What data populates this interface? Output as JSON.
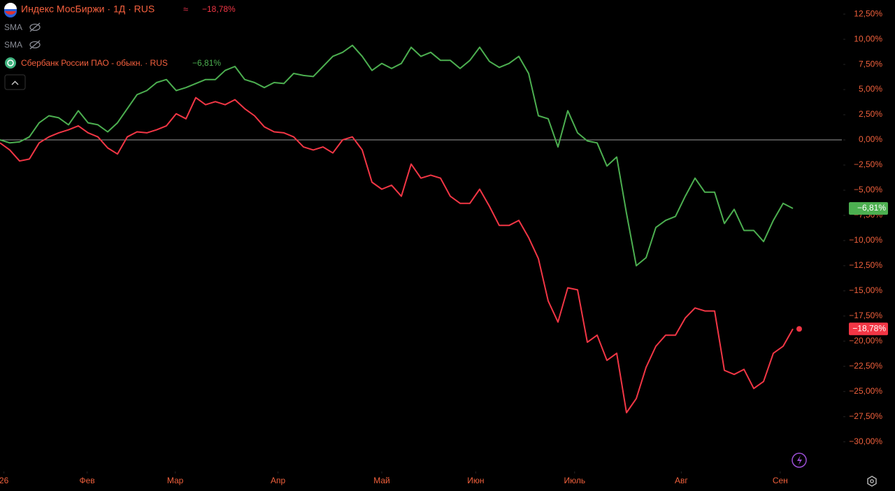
{
  "chart_data": {
    "type": "line",
    "series": [
      {
        "name": "Индекс МосБиржи · 1Д · RUS",
        "color": "#f23645",
        "change_label": "−18,78%",
        "values": [
          -0.3,
          -1.0,
          -2.1,
          -1.9,
          -0.3,
          0.3,
          0.7,
          1.0,
          1.4,
          0.7,
          0.3,
          -0.8,
          -1.4,
          0.3,
          0.8,
          0.7,
          1.0,
          1.4,
          2.6,
          2.1,
          4.2,
          3.5,
          3.8,
          3.5,
          4.0,
          3.1,
          2.4,
          1.3,
          0.8,
          0.7,
          0.3,
          -0.7,
          -1.0,
          -0.7,
          -1.3,
          0.0,
          0.3,
          -1.0,
          -4.2,
          -4.9,
          -4.5,
          -5.6,
          -2.4,
          -3.8,
          -3.5,
          -3.8,
          -5.6,
          -6.3,
          -6.3,
          -4.9,
          -6.6,
          -8.5,
          -8.5,
          -8.0,
          -9.7,
          -11.8,
          -16.0,
          -18.1,
          -14.7,
          -14.9,
          -20.1,
          -19.4,
          -21.9,
          -21.2,
          -27.1,
          -25.7,
          -22.6,
          -20.5,
          -19.4,
          -19.4,
          -17.7,
          -16.7,
          -17.0,
          -17.0,
          -22.9,
          -23.3,
          -22.8,
          -24.7,
          -24.0,
          -21.2,
          -20.5,
          -18.78
        ]
      },
      {
        "name": "Сбербанк России ПАО - обыкн. · RUS",
        "color": "#4caf50",
        "change_label": "−6,81%",
        "values": [
          0.0,
          -0.3,
          -0.2,
          0.3,
          1.7,
          2.4,
          2.2,
          1.5,
          2.9,
          1.7,
          1.5,
          0.8,
          1.7,
          3.1,
          4.5,
          4.9,
          5.7,
          6.0,
          4.9,
          5.2,
          5.6,
          6.0,
          6.0,
          6.9,
          7.3,
          6.0,
          5.7,
          5.2,
          5.7,
          5.6,
          6.6,
          6.4,
          6.3,
          7.3,
          8.3,
          8.7,
          9.4,
          8.3,
          6.9,
          7.6,
          7.1,
          7.6,
          9.2,
          8.3,
          8.7,
          7.9,
          7.9,
          7.1,
          7.9,
          9.2,
          7.8,
          7.2,
          7.6,
          8.3,
          6.6,
          2.4,
          2.1,
          -0.7,
          2.9,
          0.7,
          -0.1,
          -0.3,
          -2.6,
          -1.7,
          -7.3,
          -12.5,
          -11.7,
          -8.7,
          -8.0,
          -7.6,
          -5.6,
          -3.8,
          -5.2,
          -5.2,
          -8.3,
          -6.9,
          -9.0,
          -9.0,
          -10.1,
          -8.0,
          -6.3,
          -6.81
        ]
      }
    ],
    "indicators": [
      "SMA",
      "SMA"
    ],
    "baseline": 0,
    "xlim": [
      0,
      86
    ],
    "xticks": [
      {
        "value": 0.4,
        "label": "26"
      },
      {
        "value": 8.9,
        "label": "Фев"
      },
      {
        "value": 17.9,
        "label": "Мар"
      },
      {
        "value": 28.4,
        "label": "Апр"
      },
      {
        "value": 39,
        "label": "Май"
      },
      {
        "value": 48.6,
        "label": "Июн"
      },
      {
        "value": 58.7,
        "label": "Июль"
      },
      {
        "value": 69.6,
        "label": "Авг"
      },
      {
        "value": 79.7,
        "label": "Сен"
      }
    ],
    "ylim": [
      -32.8,
      13.9
    ],
    "yticks": [
      {
        "value": 12.5,
        "label": "12,50%"
      },
      {
        "value": 10,
        "label": "10,00%"
      },
      {
        "value": 7.5,
        "label": "7,50%"
      },
      {
        "value": 5,
        "label": "5,00%"
      },
      {
        "value": 2.5,
        "label": "2,50%"
      },
      {
        "value": 0,
        "label": "0,00%"
      },
      {
        "value": -2.5,
        "label": "−2,50%"
      },
      {
        "value": -5,
        "label": "−5,00%"
      },
      {
        "value": -7.5,
        "label": "−7,50%"
      },
      {
        "value": -10,
        "label": "−10,00%"
      },
      {
        "value": -12.5,
        "label": "−12,50%"
      },
      {
        "value": -15,
        "label": "−15,00%"
      },
      {
        "value": -17.5,
        "label": "−17,50%"
      },
      {
        "value": -20,
        "label": "−20,00%"
      },
      {
        "value": -22.5,
        "label": "−22,50%"
      },
      {
        "value": -25,
        "label": "−25,00%"
      },
      {
        "value": -27.5,
        "label": "−27,50%"
      },
      {
        "value": -30,
        "label": "−30,00%"
      }
    ]
  }
}
